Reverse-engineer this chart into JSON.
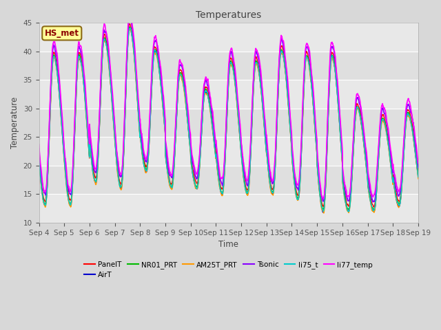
{
  "title": "Temperatures",
  "xlabel": "Time",
  "ylabel": "Temperature",
  "annotation_text": "HS_met",
  "annotation_color": "#8B0000",
  "annotation_bg": "#FFFF99",
  "annotation_border": "#8B6914",
  "ylim": [
    10,
    45
  ],
  "series": [
    {
      "label": "PanelT",
      "color": "#FF0000",
      "lw": 1.0
    },
    {
      "label": "AirT",
      "color": "#0000CC",
      "lw": 1.0
    },
    {
      "label": "NR01_PRT",
      "color": "#00BB00",
      "lw": 1.0
    },
    {
      "label": "AM25T_PRT",
      "color": "#FF9900",
      "lw": 1.0
    },
    {
      "label": "Tsonic",
      "color": "#8800FF",
      "lw": 1.2
    },
    {
      "label": "li75_t",
      "color": "#00CCCC",
      "lw": 1.0
    },
    {
      "label": "li77_temp",
      "color": "#FF00FF",
      "lw": 1.2
    }
  ],
  "xtick_labels": [
    "Sep 4",
    "Sep 5",
    "Sep 6",
    "Sep 7",
    "Sep 8",
    "Sep 9",
    "Sep 10",
    "Sep 11",
    "Sep 12",
    "Sep 13",
    "Sep 14",
    "Sep 15",
    "Sep 16",
    "Sep 17",
    "Sep 18",
    "Sep 19"
  ],
  "background_color": "#D8D8D8",
  "plot_bg": "#E8E8E8",
  "grid_color": "#FFFFFF",
  "day_peaks": [
    39,
    39,
    42,
    44,
    40,
    36,
    33,
    38,
    38,
    40,
    39,
    39,
    30,
    28,
    29
  ],
  "day_mins": [
    13,
    13,
    17,
    16,
    19,
    16,
    16,
    15,
    15,
    15,
    14,
    12,
    12,
    12,
    13
  ],
  "legend_ncol": 6
}
